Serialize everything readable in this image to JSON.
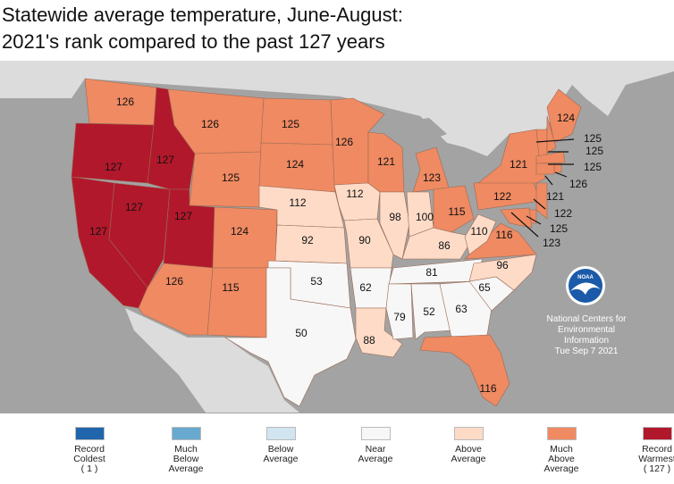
{
  "title_line1": "Statewide average temperature, June-August:",
  "title_line2": "2021's rank compared to the past 127 years",
  "colors": {
    "record_coldest": "#2166ac",
    "much_below": "#67a9cf",
    "below": "#d1e5f0",
    "near": "#f7f7f7",
    "above": "#fddbc7",
    "much_above": "#ef8a62",
    "record_warmest": "#b2182b",
    "ocean": "#a3a3a3",
    "land": "#dcdcdc"
  },
  "states": [
    {
      "id": "WA",
      "rank": 126,
      "category": "much_above"
    },
    {
      "id": "OR",
      "rank": 127,
      "category": "record_warmest"
    },
    {
      "id": "CA",
      "rank": 127,
      "category": "record_warmest"
    },
    {
      "id": "NV",
      "rank": 127,
      "category": "record_warmest"
    },
    {
      "id": "ID",
      "rank": 127,
      "category": "record_warmest"
    },
    {
      "id": "UT",
      "rank": 127,
      "category": "record_warmest"
    },
    {
      "id": "MT",
      "rank": 126,
      "category": "much_above"
    },
    {
      "id": "WY",
      "rank": 125,
      "category": "much_above"
    },
    {
      "id": "CO",
      "rank": 124,
      "category": "much_above"
    },
    {
      "id": "AZ",
      "rank": 126,
      "category": "much_above"
    },
    {
      "id": "NM",
      "rank": 115,
      "category": "much_above"
    },
    {
      "id": "ND",
      "rank": 125,
      "category": "much_above"
    },
    {
      "id": "SD",
      "rank": 124,
      "category": "much_above"
    },
    {
      "id": "NE",
      "rank": 112,
      "category": "above"
    },
    {
      "id": "KS",
      "rank": 92,
      "category": "above"
    },
    {
      "id": "OK",
      "rank": 53,
      "category": "near"
    },
    {
      "id": "TX",
      "rank": 50,
      "category": "near"
    },
    {
      "id": "MN",
      "rank": 126,
      "category": "much_above"
    },
    {
      "id": "IA",
      "rank": 112,
      "category": "above"
    },
    {
      "id": "MO",
      "rank": 90,
      "category": "above"
    },
    {
      "id": "AR",
      "rank": 62,
      "category": "near"
    },
    {
      "id": "LA",
      "rank": 88,
      "category": "above"
    },
    {
      "id": "WI",
      "rank": 121,
      "category": "much_above"
    },
    {
      "id": "IL",
      "rank": 98,
      "category": "above"
    },
    {
      "id": "MI",
      "rank": 123,
      "category": "much_above"
    },
    {
      "id": "IN",
      "rank": 100,
      "category": "above"
    },
    {
      "id": "OH",
      "rank": 115,
      "category": "much_above"
    },
    {
      "id": "KY",
      "rank": 86,
      "category": "above"
    },
    {
      "id": "TN",
      "rank": 81,
      "category": "near"
    },
    {
      "id": "MS",
      "rank": 79,
      "category": "near"
    },
    {
      "id": "AL",
      "rank": 52,
      "category": "near"
    },
    {
      "id": "GA",
      "rank": 63,
      "category": "near"
    },
    {
      "id": "FL",
      "rank": 116,
      "category": "much_above"
    },
    {
      "id": "SC",
      "rank": 65,
      "category": "near"
    },
    {
      "id": "NC",
      "rank": 96,
      "category": "above"
    },
    {
      "id": "VA",
      "rank": 116,
      "category": "much_above"
    },
    {
      "id": "WV",
      "rank": 110,
      "category": "above"
    },
    {
      "id": "PA",
      "rank": 122,
      "category": "much_above"
    },
    {
      "id": "NY",
      "rank": 121,
      "category": "much_above"
    },
    {
      "id": "ME",
      "rank": 124,
      "category": "much_above"
    },
    {
      "id": "VT",
      "rank": 125,
      "category": "much_above"
    },
    {
      "id": "NH",
      "rank": 125,
      "category": "much_above"
    },
    {
      "id": "MA",
      "rank": 125,
      "category": "much_above"
    },
    {
      "id": "RI",
      "rank": 126,
      "category": "much_above"
    },
    {
      "id": "CT",
      "rank": 121,
      "category": "much_above"
    },
    {
      "id": "NJ",
      "rank": 122,
      "category": "much_above"
    },
    {
      "id": "DE",
      "rank": 125,
      "category": "much_above"
    },
    {
      "id": "MD",
      "rank": 123,
      "category": "much_above"
    }
  ],
  "credit": {
    "logo": "NOAA",
    "line1": "National Centers for",
    "line2": "Environmental",
    "line3": "Information",
    "date": "Tue Sep  7 2021"
  },
  "legend": [
    {
      "key": "record_coldest",
      "lines": [
        "Record",
        "Coldest",
        "( 1 )"
      ]
    },
    {
      "key": "much_below",
      "lines": [
        "Much",
        "Below",
        "Average"
      ]
    },
    {
      "key": "below",
      "lines": [
        "Below",
        "Average"
      ]
    },
    {
      "key": "near",
      "lines": [
        "Near",
        "Average"
      ]
    },
    {
      "key": "above",
      "lines": [
        "Above",
        "Average"
      ]
    },
    {
      "key": "much_above",
      "lines": [
        "Much",
        "Above",
        "Average"
      ]
    },
    {
      "key": "record_warmest",
      "lines": [
        "Record",
        "Warmest",
        "( 127 )"
      ]
    }
  ]
}
